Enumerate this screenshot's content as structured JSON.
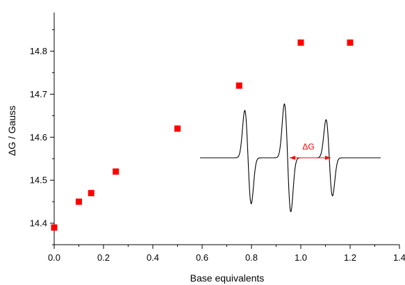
{
  "chart_data": {
    "type": "scatter",
    "xlabel": "Base equivalents",
    "ylabel": "ΔG / Gauss",
    "xlim": [
      0.0,
      1.4
    ],
    "ylim": [
      14.35,
      14.89
    ],
    "x_ticks": [
      "0.0",
      "0.2",
      "0.4",
      "0.6",
      "0.8",
      "1.0",
      "1.2",
      "1.4"
    ],
    "y_ticks": [
      "14.4",
      "14.5",
      "14.6",
      "14.7",
      "14.8"
    ],
    "grid": false,
    "marker_color": "#ff0000",
    "series": [
      {
        "x": [
          0.0,
          0.1,
          0.15,
          0.25,
          0.5,
          0.75,
          1.0,
          1.2
        ],
        "y": [
          14.39,
          14.45,
          14.47,
          14.52,
          14.62,
          14.72,
          14.82,
          14.82
        ]
      }
    ],
    "inset": {
      "type": "epr-spectrum",
      "annotation": "ΔG",
      "line_color": "#000000",
      "annotation_color": "#ff0000"
    }
  }
}
